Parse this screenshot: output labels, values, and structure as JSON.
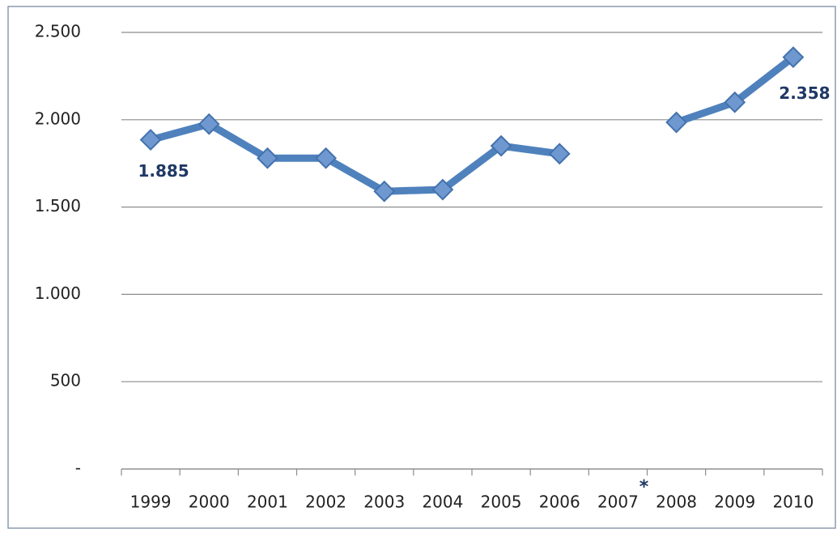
{
  "chart_data": {
    "type": "line",
    "categories": [
      "1999",
      "2000",
      "2001",
      "2002",
      "2003",
      "2004",
      "2005",
      "2006",
      "2007",
      "2008",
      "2009",
      "2010"
    ],
    "series": [
      {
        "color": "#4f81bd",
        "values": [
          1885,
          1975,
          1780,
          1780,
          1590,
          1600,
          1850,
          1805,
          null,
          1985,
          2100,
          2358
        ],
        "value_labels": [
          "1.885",
          null,
          null,
          null,
          null,
          null,
          null,
          null,
          null,
          null,
          null,
          "2.358"
        ]
      }
    ],
    "annotation": "*",
    "ylim": [
      0,
      2500
    ],
    "yticks": [
      {
        "value": 0,
        "label": "-"
      },
      500,
      {
        "value": 1000,
        "label": "1.000"
      },
      {
        "value": 1500,
        "label": "1.500"
      },
      {
        "value": 2000,
        "label": "2.000"
      },
      {
        "value": 2500,
        "label": "2.500"
      }
    ],
    "grid": true
  }
}
